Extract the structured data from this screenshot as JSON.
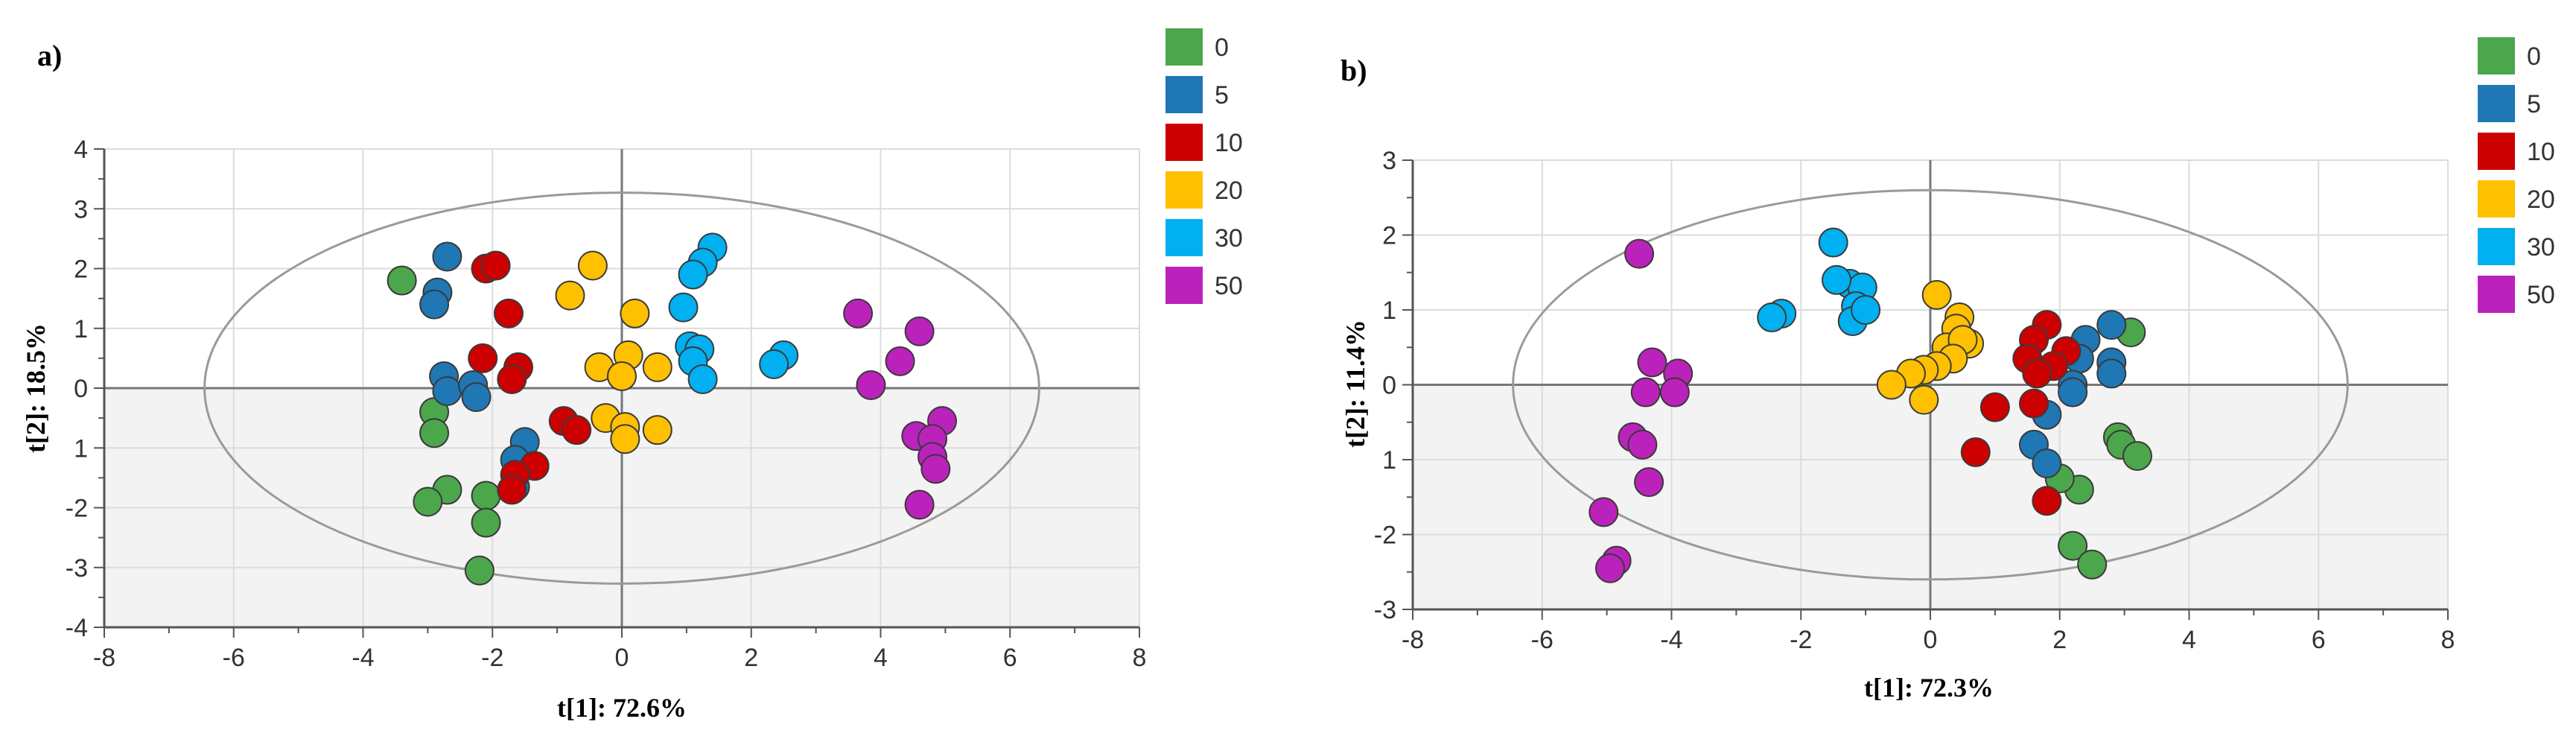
{
  "chart_data": [
    {
      "type": "scatter",
      "panel_label": "a)",
      "xlabel": "t[1]: 72.6%",
      "ylabel": "t[2]: 18.5%",
      "xlim": [
        -8,
        8
      ],
      "ylim": [
        -4,
        4
      ],
      "xticks": [
        "-8",
        "-6",
        "-4",
        "-2",
        "0",
        "2",
        "4",
        "6",
        "8"
      ],
      "yticks": [
        "4",
        "3",
        "2",
        "1",
        "0",
        "1",
        "-2",
        "-3",
        "-4"
      ],
      "ellipse": {
        "center": [
          0,
          0
        ],
        "rx": 6.45,
        "ry": 3.27
      },
      "legend_position": "right",
      "series": [
        {
          "name": "0",
          "color": "#4ca64c",
          "points": [
            [
              -3.4,
              1.8
            ],
            [
              -2.9,
              -0.4
            ],
            [
              -2.9,
              -0.75
            ],
            [
              -2.7,
              -1.7
            ],
            [
              -3.0,
              -1.9
            ],
            [
              -2.1,
              -1.8
            ],
            [
              -2.1,
              -2.25
            ],
            [
              -2.2,
              -3.05
            ]
          ]
        },
        {
          "name": "5",
          "color": "#1f77b4",
          "points": [
            [
              -2.7,
              2.2
            ],
            [
              -2.85,
              1.6
            ],
            [
              -2.9,
              1.4
            ],
            [
              -2.75,
              0.2
            ],
            [
              -2.7,
              -0.05
            ],
            [
              -2.3,
              0.05
            ],
            [
              -2.25,
              -0.15
            ],
            [
              -1.5,
              -0.9
            ],
            [
              -1.65,
              -1.2
            ],
            [
              -1.65,
              -1.65
            ]
          ]
        },
        {
          "name": "10",
          "color": "#cc0000",
          "points": [
            [
              -2.1,
              2.0
            ],
            [
              -1.95,
              2.05
            ],
            [
              -1.75,
              1.25
            ],
            [
              -2.15,
              0.5
            ],
            [
              -1.6,
              0.35
            ],
            [
              -1.7,
              0.15
            ],
            [
              -1.35,
              -1.3
            ],
            [
              -1.65,
              -1.45
            ],
            [
              -1.7,
              -1.7
            ],
            [
              -0.9,
              -0.55
            ],
            [
              -0.7,
              -0.7
            ]
          ]
        },
        {
          "name": "20",
          "color": "#ffc000",
          "points": [
            [
              -0.45,
              2.05
            ],
            [
              -0.8,
              1.55
            ],
            [
              0.2,
              1.25
            ],
            [
              -0.35,
              0.35
            ],
            [
              0.1,
              0.55
            ],
            [
              0.55,
              0.35
            ],
            [
              0.0,
              0.2
            ],
            [
              -0.25,
              -0.5
            ],
            [
              0.05,
              -0.65
            ],
            [
              0.05,
              -0.85
            ],
            [
              0.55,
              -0.7
            ]
          ]
        },
        {
          "name": "30",
          "color": "#00b0f0",
          "points": [
            [
              1.4,
              2.35
            ],
            [
              1.25,
              2.1
            ],
            [
              1.1,
              1.9
            ],
            [
              0.95,
              1.35
            ],
            [
              1.05,
              0.7
            ],
            [
              1.2,
              0.65
            ],
            [
              1.1,
              0.45
            ],
            [
              1.25,
              0.15
            ],
            [
              2.5,
              0.55
            ],
            [
              2.35,
              0.4
            ]
          ]
        },
        {
          "name": "50",
          "color": "#bb22bb",
          "points": [
            [
              3.65,
              1.25
            ],
            [
              4.6,
              0.95
            ],
            [
              4.3,
              0.45
            ],
            [
              3.85,
              0.05
            ],
            [
              4.95,
              -0.55
            ],
            [
              4.55,
              -0.8
            ],
            [
              4.8,
              -0.85
            ],
            [
              4.8,
              -1.15
            ],
            [
              4.85,
              -1.35
            ],
            [
              4.6,
              -1.95
            ]
          ]
        }
      ]
    },
    {
      "type": "scatter",
      "panel_label": "b)",
      "xlabel": "t[1]: 72.3%",
      "ylabel": "t[2]: 11.4%",
      "xlim": [
        -8,
        8
      ],
      "ylim": [
        -3,
        3
      ],
      "xticks": [
        "-8",
        "-6",
        "-4",
        "-2",
        "0",
        "2",
        "4",
        "6",
        "8"
      ],
      "yticks": [
        "3",
        "2",
        "1",
        "0",
        "1",
        "-2",
        "-3"
      ],
      "ellipse": {
        "center": [
          0,
          0
        ],
        "rx": 6.45,
        "ry": 2.6
      },
      "legend_position": "right",
      "series": [
        {
          "name": "0",
          "color": "#4ca64c",
          "points": [
            [
              3.1,
              0.7
            ],
            [
              2.9,
              -0.7
            ],
            [
              2.95,
              -0.8
            ],
            [
              3.2,
              -0.95
            ],
            [
              2.3,
              -1.4
            ],
            [
              2.0,
              -1.25
            ],
            [
              2.2,
              -2.15
            ],
            [
              2.5,
              -2.4
            ]
          ]
        },
        {
          "name": "5",
          "color": "#1f77b4",
          "points": [
            [
              2.8,
              0.8
            ],
            [
              2.4,
              0.6
            ],
            [
              2.3,
              0.35
            ],
            [
              2.8,
              0.3
            ],
            [
              2.8,
              0.15
            ],
            [
              2.2,
              0.0
            ],
            [
              2.2,
              -0.1
            ],
            [
              1.8,
              -0.4
            ],
            [
              1.6,
              -0.8
            ],
            [
              1.8,
              -1.05
            ]
          ]
        },
        {
          "name": "10",
          "color": "#cc0000",
          "points": [
            [
              1.8,
              0.8
            ],
            [
              1.6,
              0.6
            ],
            [
              2.1,
              0.45
            ],
            [
              1.5,
              0.35
            ],
            [
              1.9,
              0.25
            ],
            [
              1.65,
              0.15
            ],
            [
              1.0,
              -0.3
            ],
            [
              1.6,
              -0.25
            ],
            [
              0.7,
              -0.9
            ],
            [
              1.8,
              -1.55
            ]
          ]
        },
        {
          "name": "20",
          "color": "#ffc000",
          "points": [
            [
              0.1,
              1.2
            ],
            [
              0.45,
              0.9
            ],
            [
              0.4,
              0.75
            ],
            [
              0.6,
              0.55
            ],
            [
              0.25,
              0.5
            ],
            [
              0.5,
              0.6
            ],
            [
              0.35,
              0.35
            ],
            [
              0.1,
              0.25
            ],
            [
              -0.1,
              0.2
            ],
            [
              -0.3,
              0.15
            ],
            [
              -0.6,
              0.0
            ],
            [
              -0.1,
              -0.2
            ]
          ]
        },
        {
          "name": "30",
          "color": "#00b0f0",
          "points": [
            [
              -1.5,
              1.9
            ],
            [
              -1.25,
              1.35
            ],
            [
              -1.05,
              1.3
            ],
            [
              -1.45,
              1.4
            ],
            [
              -1.15,
              1.05
            ],
            [
              -1.2,
              0.85
            ],
            [
              -1.0,
              1.0
            ],
            [
              -2.3,
              0.95
            ],
            [
              -2.45,
              0.9
            ]
          ]
        },
        {
          "name": "50",
          "color": "#bb22bb",
          "points": [
            [
              -4.5,
              1.75
            ],
            [
              -4.3,
              0.3
            ],
            [
              -3.9,
              0.15
            ],
            [
              -4.4,
              -0.1
            ],
            [
              -3.95,
              -0.1
            ],
            [
              -4.6,
              -0.7
            ],
            [
              -4.45,
              -0.8
            ],
            [
              -4.35,
              -1.3
            ],
            [
              -5.05,
              -1.7
            ],
            [
              -4.85,
              -2.35
            ],
            [
              -4.95,
              -2.45
            ]
          ]
        }
      ]
    }
  ]
}
